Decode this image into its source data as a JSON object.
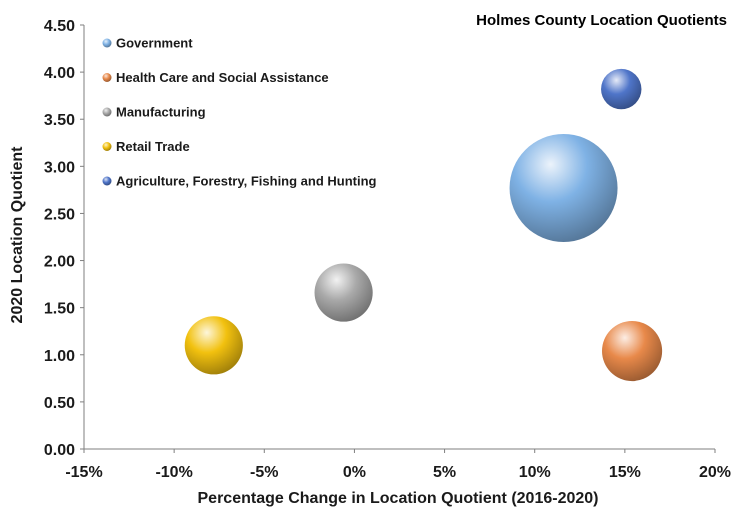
{
  "chart_data": {
    "type": "scatter",
    "title": "Holmes County Location Quotients",
    "xlabel": "Percentage Change in Location Quotient (2016-2020)",
    "ylabel": "2020 Location Quotient",
    "xlim": [
      -15,
      20
    ],
    "ylim": [
      0,
      4.5
    ],
    "x_ticks": [
      -15,
      -10,
      -5,
      0,
      5,
      10,
      15,
      20
    ],
    "x_tick_labels": [
      "-15%",
      "-10%",
      "-5%",
      "0%",
      "5%",
      "10%",
      "15%",
      "20%"
    ],
    "y_ticks": [
      0,
      0.5,
      1,
      1.5,
      2,
      2.5,
      3,
      3.5,
      4,
      4.5
    ],
    "y_tick_labels": [
      "0.00",
      "0.50",
      "1.00",
      "1.50",
      "2.00",
      "2.50",
      "3.00",
      "3.50",
      "4.00",
      "4.50"
    ],
    "grid": false,
    "legend_position": "top-left",
    "series": [
      {
        "name": "Government",
        "x": 11.6,
        "y": 2.77,
        "size": 1.0,
        "color": "#7fb2e5"
      },
      {
        "name": "Health Care and Social Assistance",
        "x": 15.4,
        "y": 1.04,
        "size": 0.31,
        "color": "#e8894a"
      },
      {
        "name": "Manufacturing",
        "x": -0.6,
        "y": 1.66,
        "size": 0.29,
        "color": "#a9a9a9"
      },
      {
        "name": "Retail Trade",
        "x": -7.8,
        "y": 1.1,
        "size": 0.29,
        "color": "#f2c10f"
      },
      {
        "name": "Agriculture, Forestry, Fishing and Hunting",
        "x": 14.8,
        "y": 3.82,
        "size": 0.14,
        "color": "#4f75c9"
      }
    ]
  }
}
